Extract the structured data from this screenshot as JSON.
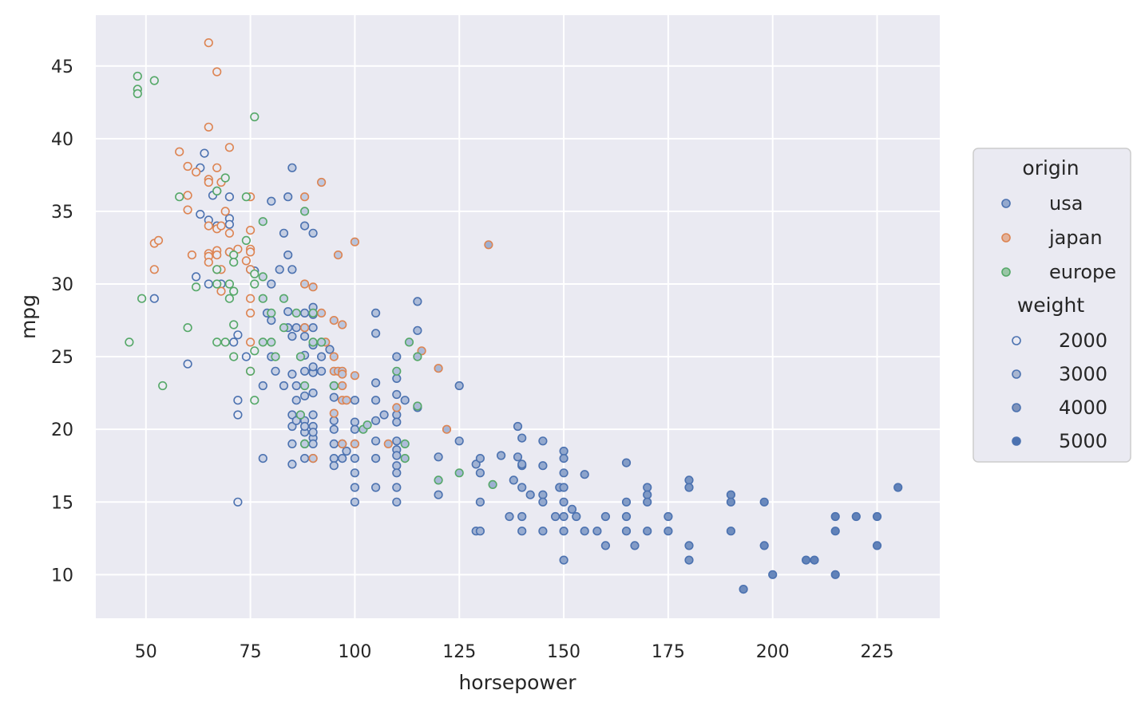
{
  "chart_data": {
    "type": "scatter",
    "xlabel": "horsepower",
    "ylabel": "mpg",
    "xlim": [
      38,
      240
    ],
    "ylim": [
      7,
      48.5
    ],
    "xticks": [
      50,
      75,
      100,
      125,
      150,
      175,
      200,
      225
    ],
    "yticks": [
      10,
      15,
      20,
      25,
      30,
      35,
      40,
      45
    ],
    "grid": true,
    "background": "#eaeaf2",
    "legend": {
      "placement": "right",
      "hue_title": "origin",
      "size_title": "weight",
      "weights": [
        "2000",
        "3000",
        "4000",
        "5000"
      ]
    },
    "series": [
      {
        "name": "usa",
        "color": "#4c72b0",
        "points": [
          [
            52,
            29
          ],
          [
            60,
            24.5
          ],
          [
            62,
            30.5
          ],
          [
            63,
            38
          ],
          [
            63,
            34.8
          ],
          [
            64,
            39
          ],
          [
            65,
            30
          ],
          [
            65,
            34.4
          ],
          [
            66,
            36.1
          ],
          [
            67,
            34
          ],
          [
            67,
            36.4
          ],
          [
            68,
            30
          ],
          [
            70,
            34.5
          ],
          [
            70,
            34.1
          ],
          [
            70,
            32.2
          ],
          [
            70,
            36
          ],
          [
            71,
            26
          ],
          [
            72,
            26.5
          ],
          [
            72,
            22
          ],
          [
            72,
            21
          ],
          [
            72,
            15
          ],
          [
            74,
            25
          ],
          [
            75,
            31
          ],
          [
            76,
            30.9
          ],
          [
            78,
            18
          ],
          [
            78,
            23
          ],
          [
            79,
            28
          ],
          [
            80,
            35.7
          ],
          [
            80,
            30
          ],
          [
            80,
            27.5
          ],
          [
            80,
            25
          ],
          [
            81,
            24
          ],
          [
            82,
            31
          ],
          [
            83,
            33.5
          ],
          [
            83,
            23
          ],
          [
            84,
            32
          ],
          [
            84,
            36
          ],
          [
            84,
            28.1
          ],
          [
            84,
            27
          ],
          [
            85,
            38
          ],
          [
            85,
            31
          ],
          [
            85,
            26.4
          ],
          [
            85,
            23.8
          ],
          [
            85,
            21
          ],
          [
            85,
            20.2
          ],
          [
            85,
            19
          ],
          [
            85,
            17.6
          ],
          [
            86,
            27
          ],
          [
            86,
            23
          ],
          [
            86,
            22
          ],
          [
            86,
            20.6
          ],
          [
            88,
            34
          ],
          [
            88,
            27
          ],
          [
            88,
            28
          ],
          [
            88,
            26.4
          ],
          [
            88,
            25.1
          ],
          [
            88,
            24
          ],
          [
            88,
            22.3
          ],
          [
            88,
            20.6
          ],
          [
            88,
            19.8
          ],
          [
            88,
            20.2
          ],
          [
            88,
            18
          ],
          [
            88,
            19
          ],
          [
            90,
            33.5
          ],
          [
            90,
            28.4
          ],
          [
            90,
            27.9
          ],
          [
            90,
            27
          ],
          [
            90,
            25.8
          ],
          [
            90,
            24
          ],
          [
            90,
            23.9
          ],
          [
            90,
            24.3
          ],
          [
            90,
            22.5
          ],
          [
            90,
            21
          ],
          [
            90,
            20.2
          ],
          [
            90,
            19.4
          ],
          [
            90,
            19.8
          ],
          [
            90,
            19
          ],
          [
            90,
            18
          ],
          [
            92,
            26
          ],
          [
            92,
            25
          ],
          [
            92,
            24
          ],
          [
            94,
            25.5
          ],
          [
            95,
            23
          ],
          [
            95,
            22.2
          ],
          [
            95,
            20.6
          ],
          [
            95,
            20
          ],
          [
            95,
            19
          ],
          [
            95,
            18
          ],
          [
            95,
            17.5
          ],
          [
            97,
            18
          ],
          [
            97,
            19
          ],
          [
            98,
            18.5
          ],
          [
            100,
            22
          ],
          [
            100,
            20.5
          ],
          [
            100,
            20
          ],
          [
            100,
            19
          ],
          [
            100,
            18
          ],
          [
            100,
            17
          ],
          [
            100,
            16
          ],
          [
            100,
            15
          ],
          [
            105,
            28
          ],
          [
            105,
            26.6
          ],
          [
            105,
            23.2
          ],
          [
            105,
            22
          ],
          [
            105,
            20.6
          ],
          [
            105,
            19.2
          ],
          [
            105,
            18
          ],
          [
            105,
            16
          ],
          [
            107,
            21
          ],
          [
            110,
            25
          ],
          [
            110,
            23.5
          ],
          [
            110,
            22.4
          ],
          [
            110,
            21
          ],
          [
            110,
            20.5
          ],
          [
            110,
            19.2
          ],
          [
            110,
            18.6
          ],
          [
            110,
            18.2
          ],
          [
            110,
            17.5
          ],
          [
            110,
            17
          ],
          [
            110,
            16
          ],
          [
            110,
            15
          ],
          [
            112,
            22
          ],
          [
            115,
            28.8
          ],
          [
            115,
            26.8
          ],
          [
            115,
            21.5
          ],
          [
            120,
            18.1
          ],
          [
            120,
            15.5
          ],
          [
            125,
            23
          ],
          [
            125,
            19.2
          ],
          [
            129,
            17.6
          ],
          [
            129,
            13
          ],
          [
            130,
            18
          ],
          [
            130,
            17
          ],
          [
            130,
            15
          ],
          [
            130,
            13
          ],
          [
            135,
            18.2
          ],
          [
            137,
            14
          ],
          [
            138,
            16.5
          ],
          [
            139,
            20.2
          ],
          [
            139,
            18.1
          ],
          [
            140,
            19.4
          ],
          [
            140,
            17.5
          ],
          [
            140,
            17.6
          ],
          [
            140,
            16
          ],
          [
            140,
            14
          ],
          [
            140,
            13
          ],
          [
            142,
            15.5
          ],
          [
            145,
            19.2
          ],
          [
            145,
            17.5
          ],
          [
            145,
            15.5
          ],
          [
            145,
            15
          ],
          [
            145,
            13
          ],
          [
            148,
            14
          ],
          [
            149,
            16
          ],
          [
            150,
            18.5
          ],
          [
            150,
            18
          ],
          [
            150,
            17
          ],
          [
            150,
            16
          ],
          [
            150,
            15
          ],
          [
            150,
            14
          ],
          [
            150,
            13
          ],
          [
            150,
            11
          ],
          [
            152,
            14.5
          ],
          [
            153,
            14
          ],
          [
            155,
            16.9
          ],
          [
            155,
            13
          ],
          [
            158,
            13
          ],
          [
            160,
            14
          ],
          [
            160,
            12
          ],
          [
            165,
            17.7
          ],
          [
            165,
            15
          ],
          [
            165,
            14
          ],
          [
            165,
            13
          ],
          [
            167,
            12
          ],
          [
            170,
            16
          ],
          [
            170,
            15.5
          ],
          [
            170,
            15
          ],
          [
            170,
            13
          ],
          [
            175,
            14
          ],
          [
            175,
            13
          ],
          [
            180,
            16.5
          ],
          [
            180,
            16
          ],
          [
            180,
            12
          ],
          [
            180,
            11
          ],
          [
            190,
            15.5
          ],
          [
            190,
            15
          ],
          [
            190,
            13
          ],
          [
            193,
            9
          ],
          [
            198,
            15
          ],
          [
            198,
            12
          ],
          [
            200,
            10
          ],
          [
            208,
            11
          ],
          [
            210,
            11
          ],
          [
            215,
            14
          ],
          [
            215,
            13
          ],
          [
            215,
            10
          ],
          [
            220,
            14
          ],
          [
            225,
            14
          ],
          [
            225,
            12
          ],
          [
            230,
            16
          ]
        ]
      },
      {
        "name": "japan",
        "color": "#dd8452",
        "points": [
          [
            52,
            32.8
          ],
          [
            52,
            31
          ],
          [
            53,
            33
          ],
          [
            58,
            39.1
          ],
          [
            60,
            38.1
          ],
          [
            60,
            36.1
          ],
          [
            60,
            35.1
          ],
          [
            61,
            32
          ],
          [
            62,
            37.7
          ],
          [
            65,
            46.6
          ],
          [
            65,
            40.8
          ],
          [
            65,
            37.2
          ],
          [
            65,
            37
          ],
          [
            65,
            32.1
          ],
          [
            65,
            34
          ],
          [
            65,
            31.9
          ],
          [
            65,
            31.5
          ],
          [
            67,
            44.6
          ],
          [
            67,
            38
          ],
          [
            67,
            33.8
          ],
          [
            67,
            32.3
          ],
          [
            67,
            32
          ],
          [
            67,
            31
          ],
          [
            68,
            37
          ],
          [
            68,
            31
          ],
          [
            68,
            29.5
          ],
          [
            68,
            34
          ],
          [
            69,
            35
          ],
          [
            70,
            39.4
          ],
          [
            70,
            33.5
          ],
          [
            70,
            32.2
          ],
          [
            72,
            32.4
          ],
          [
            74,
            31.6
          ],
          [
            75,
            36
          ],
          [
            75,
            33.7
          ],
          [
            75,
            32.4
          ],
          [
            75,
            32.2
          ],
          [
            75,
            31
          ],
          [
            75,
            29
          ],
          [
            75,
            28
          ],
          [
            75,
            26
          ],
          [
            75,
            24
          ],
          [
            88,
            36
          ],
          [
            88,
            30
          ],
          [
            88,
            27
          ],
          [
            90,
            29.8
          ],
          [
            90,
            18
          ],
          [
            92,
            37
          ],
          [
            92,
            28
          ],
          [
            93,
            26
          ],
          [
            95,
            27.5
          ],
          [
            95,
            25
          ],
          [
            95,
            24
          ],
          [
            95,
            21.1
          ],
          [
            96,
            32
          ],
          [
            96,
            24
          ],
          [
            97,
            27.2
          ],
          [
            97,
            24
          ],
          [
            97,
            23.8
          ],
          [
            97,
            23
          ],
          [
            97,
            22
          ],
          [
            97,
            19
          ],
          [
            98,
            22
          ],
          [
            100,
            32.9
          ],
          [
            100,
            23.7
          ],
          [
            100,
            19
          ],
          [
            108,
            19
          ],
          [
            110,
            21.5
          ],
          [
            116,
            25.4
          ],
          [
            120,
            24.2
          ],
          [
            122,
            20
          ],
          [
            132,
            32.7
          ]
        ]
      },
      {
        "name": "europe",
        "color": "#55a868",
        "points": [
          [
            46,
            26
          ],
          [
            48,
            44.3
          ],
          [
            48,
            43.4
          ],
          [
            48,
            43.1
          ],
          [
            49,
            29
          ],
          [
            52,
            44
          ],
          [
            54,
            23
          ],
          [
            58,
            36
          ],
          [
            60,
            27
          ],
          [
            62,
            29.8
          ],
          [
            67,
            36.4
          ],
          [
            67,
            31
          ],
          [
            67,
            30
          ],
          [
            67,
            26
          ],
          [
            69,
            37.3
          ],
          [
            69,
            26
          ],
          [
            70,
            30
          ],
          [
            70,
            29
          ],
          [
            71,
            32
          ],
          [
            71,
            31.5
          ],
          [
            71,
            27.2
          ],
          [
            71,
            29.5
          ],
          [
            71,
            25
          ],
          [
            74,
            33
          ],
          [
            74,
            36
          ],
          [
            75,
            24
          ],
          [
            76,
            41.5
          ],
          [
            76,
            30.7
          ],
          [
            76,
            30
          ],
          [
            76,
            25.4
          ],
          [
            76,
            22
          ],
          [
            78,
            34.3
          ],
          [
            78,
            30.5
          ],
          [
            78,
            29
          ],
          [
            78,
            26
          ],
          [
            80,
            28
          ],
          [
            80,
            26
          ],
          [
            81,
            25
          ],
          [
            83,
            27
          ],
          [
            83,
            29
          ],
          [
            86,
            28
          ],
          [
            87,
            25
          ],
          [
            87,
            21
          ],
          [
            88,
            35
          ],
          [
            88,
            23
          ],
          [
            88,
            19
          ],
          [
            90,
            28
          ],
          [
            90,
            26
          ],
          [
            92,
            26
          ],
          [
            95,
            23
          ],
          [
            102,
            20
          ],
          [
            103,
            20.3
          ],
          [
            110,
            24
          ],
          [
            112,
            19
          ],
          [
            112,
            18
          ],
          [
            113,
            26
          ],
          [
            115,
            25
          ],
          [
            115,
            21.6
          ],
          [
            120,
            16.5
          ],
          [
            125,
            17
          ],
          [
            133,
            16.2
          ]
        ]
      }
    ]
  }
}
